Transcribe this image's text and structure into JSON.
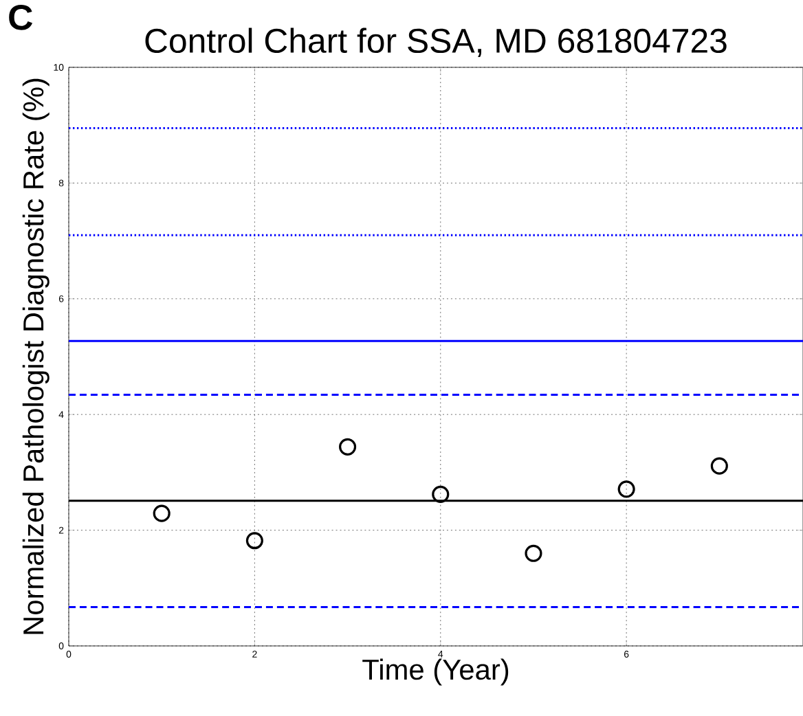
{
  "chart_data": {
    "type": "scatter",
    "title": "Control Chart for SSA, MD 681804723",
    "xlabel": "Time (Year)",
    "ylabel": "Normalized Pathologist Diagnostic Rate (%)",
    "annotations": [
      "C"
    ],
    "x": [
      1,
      2,
      3,
      4,
      5,
      6,
      7
    ],
    "series": [
      {
        "color": "#000000",
        "values": [
          2.29,
          1.82,
          3.44,
          2.62,
          1.6,
          2.71,
          3.11
        ]
      }
    ],
    "xlim": [
      0,
      7.9
    ],
    "ylim": [
      0,
      10
    ],
    "xticks": [
      0,
      2,
      4,
      6
    ],
    "yticks": [
      0,
      2,
      4,
      6,
      8,
      10
    ],
    "grid": true,
    "marker": "circle",
    "ref_lines": [
      {
        "axis": "y",
        "value": 2.51,
        "color": "#000000",
        "line_style": "solid"
      },
      {
        "axis": "y",
        "value": 4.34,
        "color": "#0000ff",
        "line_style": "dashed"
      },
      {
        "axis": "y",
        "value": 0.67,
        "color": "#0000ff",
        "line_style": "dashed"
      },
      {
        "axis": "y",
        "value": 5.27,
        "color": "#0000ff",
        "line_style": "solid"
      },
      {
        "axis": "y",
        "value": 7.1,
        "color": "#0000ff",
        "line_style": "dotted"
      },
      {
        "axis": "y",
        "value": 8.95,
        "color": "#0000ff",
        "line_style": "dotted"
      }
    ]
  }
}
